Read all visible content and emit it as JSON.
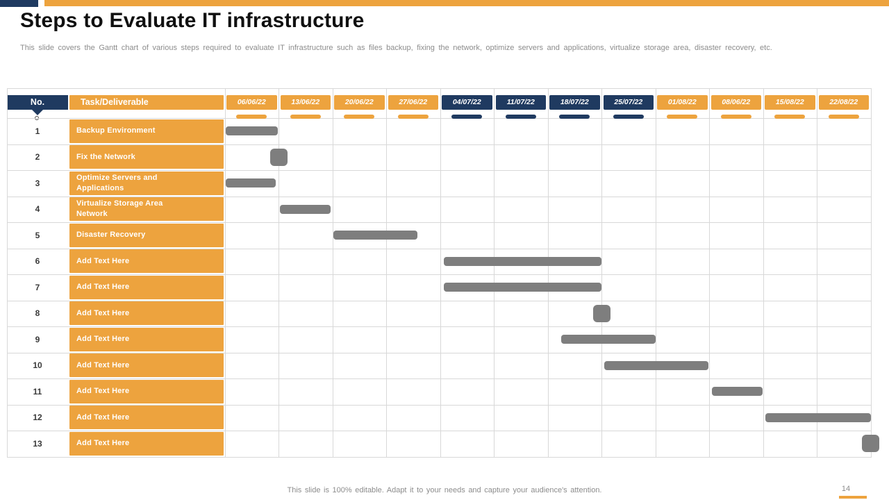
{
  "slide": {
    "title": "Steps to Evaluate IT infrastructure",
    "subtitle": "This slide covers the Gantt chart of various steps required to evaluate IT infrastructure such as files backup, fixing the network, optimize servers and applications, virtualize storage area, disaster recovery, etc.",
    "footer_note": "This slide is 100% editable. Adapt it to your needs and capture your audience's attention.",
    "page_number": "14"
  },
  "colors": {
    "navy": "#1F3A60",
    "orange": "#EDA33E",
    "bar_gray": "#7E7E7E",
    "grid": "#D8D8D8"
  },
  "gantt": {
    "no_header": "No.",
    "task_header": "Task/Deliverable",
    "week_headers": [
      {
        "label": "06/06/22",
        "theme": "orange"
      },
      {
        "label": "13/06/22",
        "theme": "orange"
      },
      {
        "label": "20/06/22",
        "theme": "orange"
      },
      {
        "label": "27/06/22",
        "theme": "orange"
      },
      {
        "label": "04/07/22",
        "theme": "navy"
      },
      {
        "label": "11/07/22",
        "theme": "navy"
      },
      {
        "label": "18/07/22",
        "theme": "navy"
      },
      {
        "label": "25/07/22",
        "theme": "navy"
      },
      {
        "label": "01/08/22",
        "theme": "orange"
      },
      {
        "label": "08/06/22",
        "theme": "orange"
      },
      {
        "label": "15/08/22",
        "theme": "orange"
      },
      {
        "label": "22/08/22",
        "theme": "orange"
      }
    ]
  },
  "chart_data": {
    "type": "bar",
    "subtype": "gantt",
    "title": "Steps to Evaluate IT infrastructure",
    "x_axis_weeks": [
      "06/06/22",
      "13/06/22",
      "20/06/22",
      "27/06/22",
      "04/07/22",
      "11/07/22",
      "18/07/22",
      "25/07/22",
      "01/08/22",
      "08/06/22",
      "15/08/22",
      "22/08/22"
    ],
    "x_unit": "week index (0 = start of 06/06/22 column)",
    "bar_color": "#7E7E7E",
    "tasks": [
      {
        "no": "1",
        "name": "Backup Environment",
        "start_week": 0.02,
        "end_week": 0.99
      },
      {
        "no": "2",
        "name": "Fix the Network",
        "milestone_week": 1.0
      },
      {
        "no": "3",
        "name": "Optimize Servers and\nApplications",
        "start_week": 0.02,
        "end_week": 0.95
      },
      {
        "no": "4",
        "name": "Virtualize Storage Area\nNetwork",
        "start_week": 1.03,
        "end_week": 1.97
      },
      {
        "no": "5",
        "name": "Disaster Recovery",
        "start_week": 2.02,
        "end_week": 3.58
      },
      {
        "no": "6",
        "name": "Add Text Here",
        "start_week": 4.07,
        "end_week": 7.0
      },
      {
        "no": "7",
        "name": "Add Text Here",
        "start_week": 4.07,
        "end_week": 7.0
      },
      {
        "no": "8",
        "name": "Add Text Here",
        "milestone_week": 7.0
      },
      {
        "no": "9",
        "name": "Add Text Here",
        "start_week": 6.25,
        "end_week": 8.0
      },
      {
        "no": "10",
        "name": "Add Text Here",
        "start_week": 7.05,
        "end_week": 8.99
      },
      {
        "no": "11",
        "name": "Add Text Here",
        "start_week": 9.05,
        "end_week": 9.99
      },
      {
        "no": "12",
        "name": "Add Text Here",
        "start_week": 10.05,
        "end_week": 12.0
      },
      {
        "no": "13",
        "name": "Add Text Here",
        "milestone_week": 12.0
      }
    ]
  }
}
